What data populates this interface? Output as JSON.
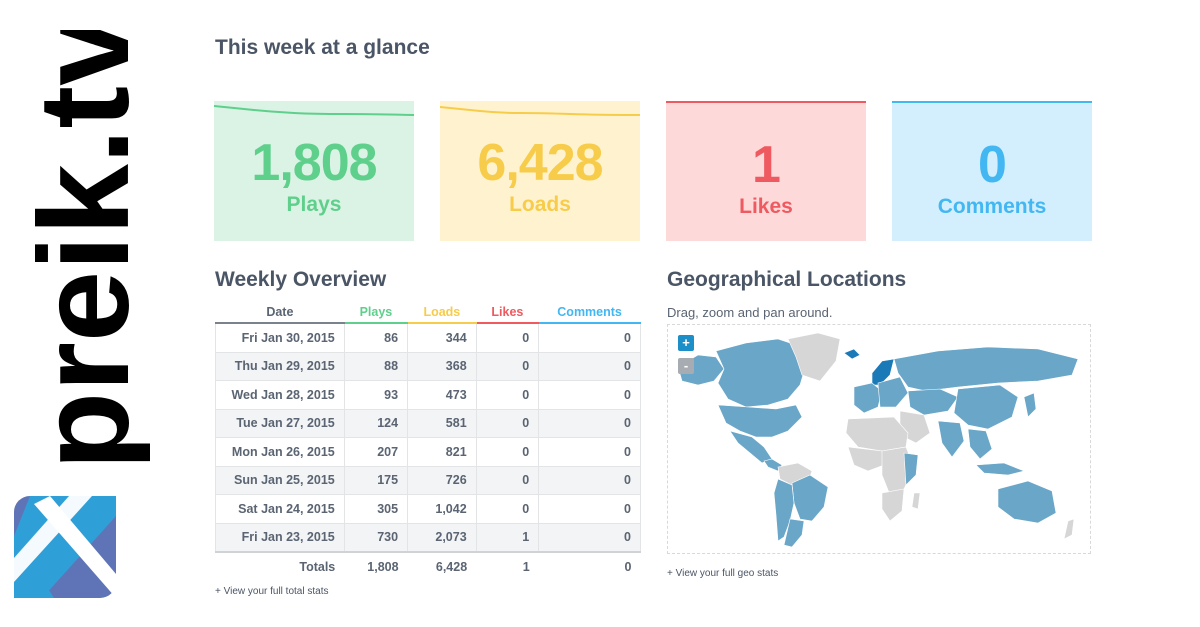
{
  "brand": {
    "name": "preik.tv"
  },
  "glance": {
    "title": "This week at a glance"
  },
  "cards": {
    "plays": {
      "value": "1,808",
      "label": "Plays",
      "color": "#5fcf8c"
    },
    "loads": {
      "value": "6,428",
      "label": "Loads",
      "color": "#f7cc4a"
    },
    "likes": {
      "value": "1",
      "label": "Likes",
      "color": "#ee5a5f"
    },
    "comments": {
      "value": "0",
      "label": "Comments",
      "color": "#43b7f2"
    }
  },
  "weekly": {
    "title": "Weekly Overview",
    "headers": {
      "date": "Date",
      "plays": "Plays",
      "loads": "Loads",
      "likes": "Likes",
      "comments": "Comments"
    },
    "rows": [
      {
        "date": "Fri Jan 30, 2015",
        "plays": "86",
        "loads": "344",
        "likes": "0",
        "comments": "0"
      },
      {
        "date": "Thu Jan 29, 2015",
        "plays": "88",
        "loads": "368",
        "likes": "0",
        "comments": "0"
      },
      {
        "date": "Wed Jan 28, 2015",
        "plays": "93",
        "loads": "473",
        "likes": "0",
        "comments": "0"
      },
      {
        "date": "Tue Jan 27, 2015",
        "plays": "124",
        "loads": "581",
        "likes": "0",
        "comments": "0"
      },
      {
        "date": "Mon Jan 26, 2015",
        "plays": "207",
        "loads": "821",
        "likes": "0",
        "comments": "0"
      },
      {
        "date": "Sun Jan 25, 2015",
        "plays": "175",
        "loads": "726",
        "likes": "0",
        "comments": "0"
      },
      {
        "date": "Sat Jan 24, 2015",
        "plays": "305",
        "loads": "1,042",
        "likes": "0",
        "comments": "0"
      },
      {
        "date": "Fri Jan 23, 2015",
        "plays": "730",
        "loads": "2,073",
        "likes": "1",
        "comments": "0"
      }
    ],
    "totals": {
      "label": "Totals",
      "plays": "1,808",
      "loads": "6,428",
      "likes": "1",
      "comments": "0"
    },
    "link": "+ View your full total stats"
  },
  "geo": {
    "title": "Geographical Locations",
    "subtitle": "Drag, zoom and pan around.",
    "zoom_in": "+",
    "zoom_out": "-",
    "link": "+ View your full geo stats",
    "colors": {
      "active": "#6aa6c8",
      "inactive": "#d6d6d6",
      "highlight": "#1a7ab8"
    }
  }
}
